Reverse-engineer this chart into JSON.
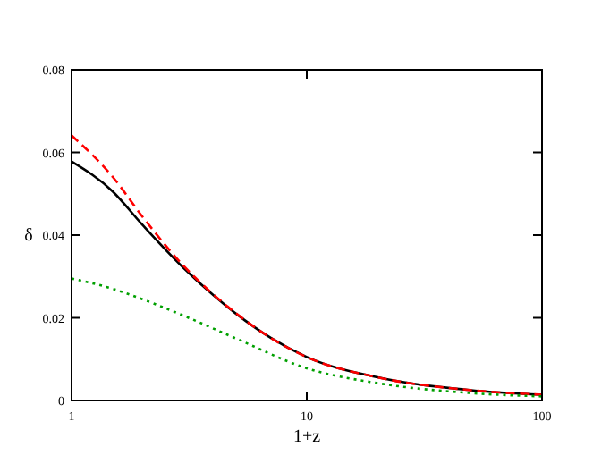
{
  "chart_data": {
    "type": "line",
    "xlabel": "1+z",
    "ylabel": "δ",
    "log": "x",
    "xlim": [
      1,
      100
    ],
    "ylim": [
      0,
      0.08
    ],
    "xticks": [
      1,
      10,
      100
    ],
    "yticks": [
      0,
      0.02,
      0.04,
      0.06,
      0.08
    ],
    "grid": false,
    "series": [
      {
        "color": "#000000",
        "line_style": "solid",
        "x": [
          1,
          1.5,
          2,
          3,
          4,
          5,
          7,
          10,
          20,
          50,
          100
        ],
        "values": [
          0.0578,
          0.0505,
          0.0425,
          0.032,
          0.0255,
          0.021,
          0.0152,
          0.0105,
          0.0056,
          0.0025,
          0.0014
        ]
      },
      {
        "color": "#ff0000",
        "line_style": "dashed",
        "x": [
          1,
          1.5,
          2,
          3,
          4,
          5,
          7,
          10,
          20,
          50,
          100
        ],
        "values": [
          0.0641,
          0.054,
          0.0445,
          0.0325,
          0.0257,
          0.0211,
          0.0152,
          0.0105,
          0.0056,
          0.0025,
          0.0014
        ]
      },
      {
        "color": "#00a000",
        "line_style": "dotted",
        "x": [
          1,
          1.5,
          2,
          3,
          5,
          10,
          20,
          50,
          100
        ],
        "values": [
          0.0295,
          0.027,
          0.0245,
          0.0205,
          0.015,
          0.0078,
          0.0042,
          0.0018,
          0.001
        ]
      }
    ]
  }
}
